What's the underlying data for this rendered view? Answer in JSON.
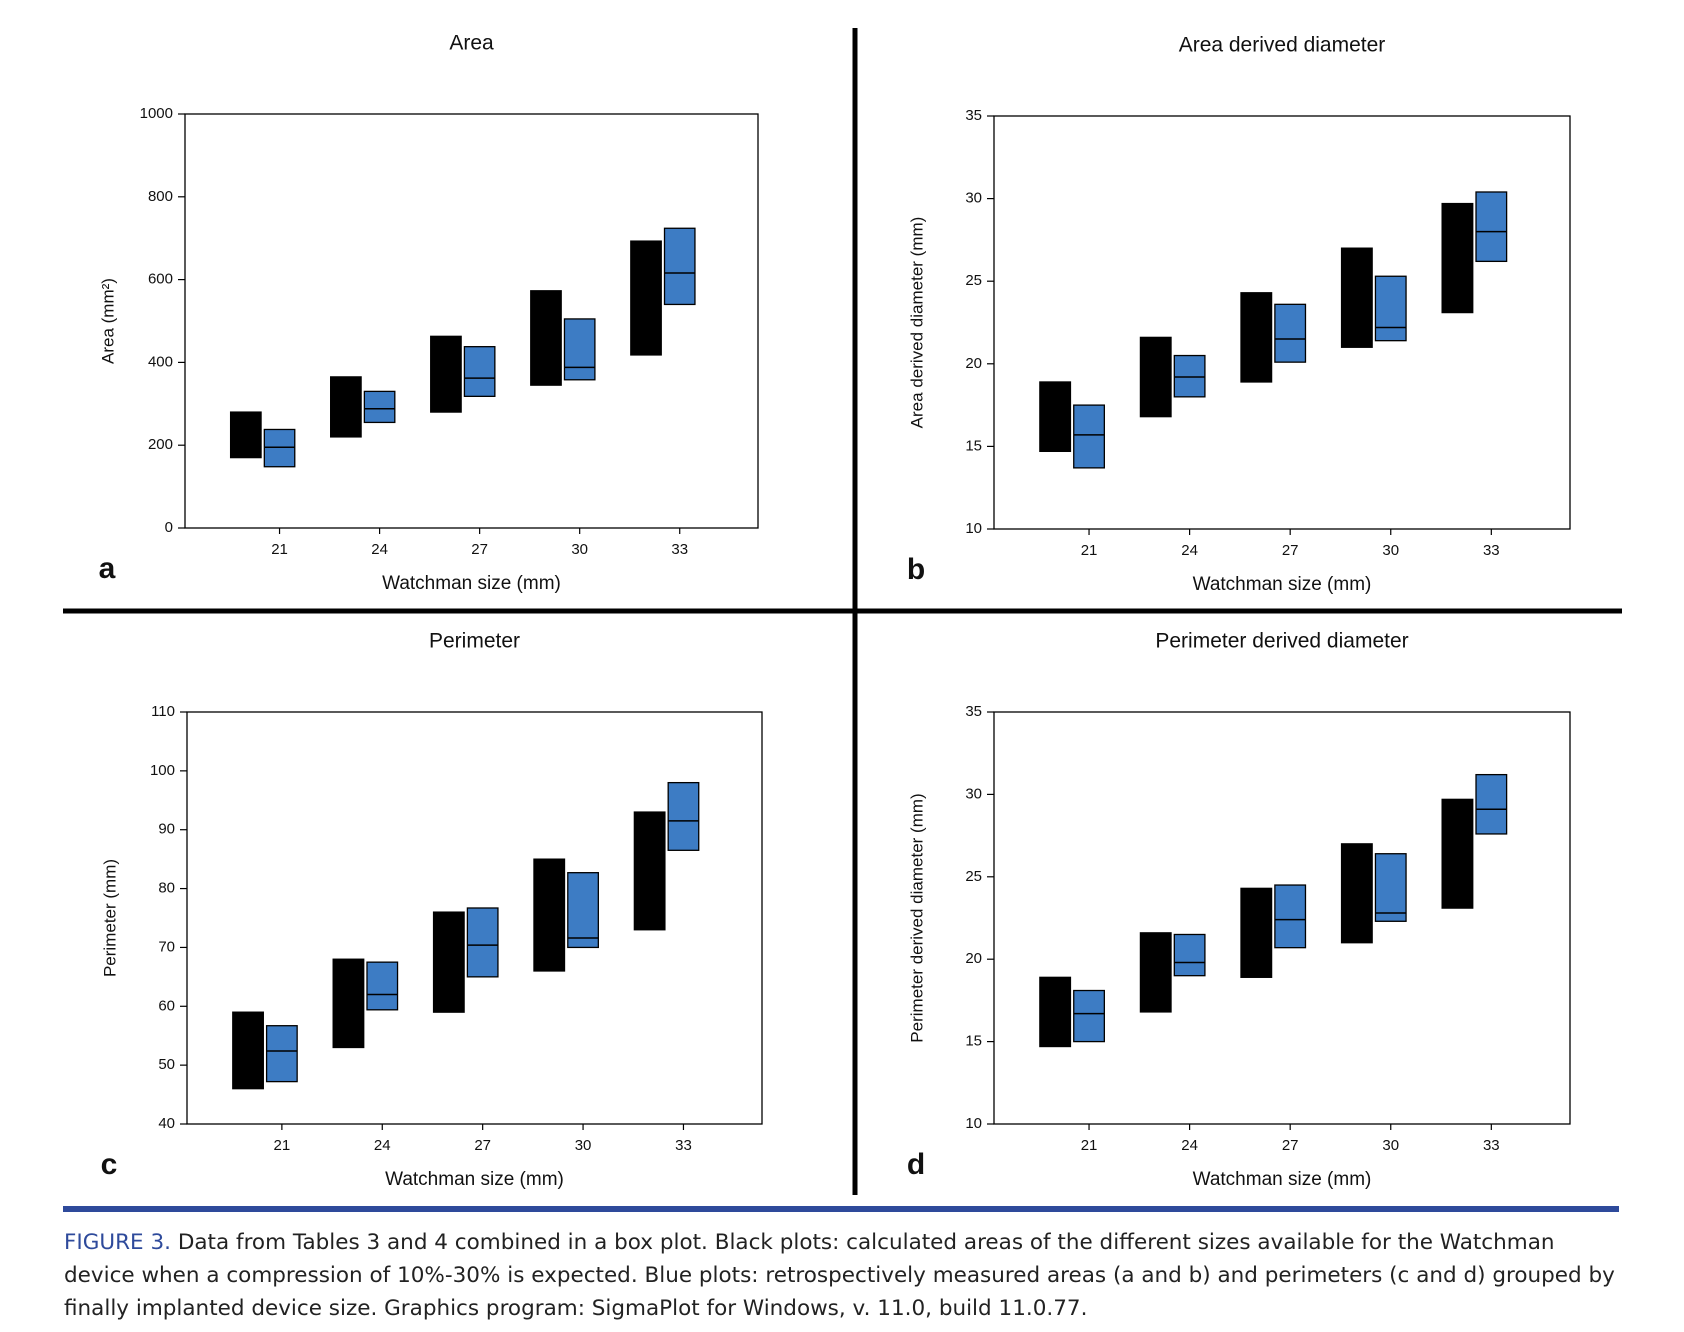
{
  "chart_data": [
    {
      "type": "box",
      "title": "Area",
      "panel": "a",
      "xlabel": "Watchman size (mm)",
      "ylabel": "Area (mm²)",
      "categories": [
        "21",
        "24",
        "27",
        "30",
        "33"
      ],
      "ylim": [
        0,
        1000
      ],
      "yticks": [
        0,
        200,
        400,
        600,
        800,
        1000
      ],
      "series": [
        {
          "color": "#000000",
          "low": [
            170,
            220,
            280,
            345,
            418
          ],
          "high": [
            280,
            365,
            463,
            573,
            693
          ]
        },
        {
          "color": "#3d7cc4",
          "low": [
            148,
            255,
            318,
            358,
            540
          ],
          "high": [
            238,
            330,
            438,
            505,
            724
          ],
          "median": [
            195,
            288,
            362,
            388,
            616
          ]
        }
      ]
    },
    {
      "type": "box",
      "title": "Area derived diameter",
      "panel": "b",
      "xlabel": "Watchman size (mm)",
      "ylabel": "Area derived diameter (mm)",
      "categories": [
        "21",
        "24",
        "27",
        "30",
        "33"
      ],
      "ylim": [
        10,
        35
      ],
      "yticks": [
        10,
        15,
        20,
        25,
        30,
        35
      ],
      "series": [
        {
          "color": "#000000",
          "low": [
            14.7,
            16.8,
            18.9,
            21.0,
            23.1
          ],
          "high": [
            18.9,
            21.6,
            24.3,
            27.0,
            29.7
          ]
        },
        {
          "color": "#3d7cc4",
          "low": [
            13.7,
            18.0,
            20.1,
            21.4,
            26.2
          ],
          "high": [
            17.5,
            20.5,
            23.6,
            25.3,
            30.4
          ],
          "median": [
            15.7,
            19.2,
            21.5,
            22.2,
            28.0
          ]
        }
      ]
    },
    {
      "type": "box",
      "title": "Perimeter",
      "panel": "c",
      "xlabel": "Watchman size (mm)",
      "ylabel": "Perimeter (mm)",
      "categories": [
        "21",
        "24",
        "27",
        "30",
        "33"
      ],
      "ylim": [
        40,
        110
      ],
      "yticks": [
        40,
        50,
        60,
        70,
        80,
        90,
        100,
        110
      ],
      "series": [
        {
          "color": "#000000",
          "low": [
            46,
            53,
            59,
            66,
            73
          ],
          "high": [
            59,
            68,
            76,
            85,
            93
          ]
        },
        {
          "color": "#3d7cc4",
          "low": [
            47.2,
            59.4,
            65,
            70,
            86.5
          ],
          "high": [
            56.7,
            67.5,
            76.7,
            82.7,
            98
          ],
          "median": [
            52.4,
            62.0,
            70.4,
            71.6,
            91.5
          ]
        }
      ]
    },
    {
      "type": "box",
      "title": "Perimeter derived diameter",
      "panel": "d",
      "xlabel": "Watchman size (mm)",
      "ylabel": "Perimeter derived diameter (mm)",
      "categories": [
        "21",
        "24",
        "27",
        "30",
        "33"
      ],
      "ylim": [
        10,
        35
      ],
      "yticks": [
        10,
        15,
        20,
        25,
        30,
        35
      ],
      "series": [
        {
          "color": "#000000",
          "low": [
            14.7,
            16.8,
            18.9,
            21.0,
            23.1
          ],
          "high": [
            18.9,
            21.6,
            24.3,
            27.0,
            29.7
          ]
        },
        {
          "color": "#3d7cc4",
          "low": [
            15.0,
            19.0,
            20.7,
            22.3,
            27.6
          ],
          "high": [
            18.1,
            21.5,
            24.5,
            26.4,
            31.2
          ],
          "median": [
            16.7,
            19.8,
            22.4,
            22.8,
            29.1
          ]
        }
      ]
    }
  ],
  "caption": {
    "label": "FIGURE 3.",
    "text": "Data from Tables 3 and 4 combined in a box plot. Black plots: calculated areas of the different sizes available for the Watchman device when a compression of 10%-30% is expected. Blue plots: retrospectively measured areas (a and b) and perimeters (c and d) grouped by finally implanted device size. Graphics program: SigmaPlot for Windows, v. 11.0, build 11.0.77."
  }
}
